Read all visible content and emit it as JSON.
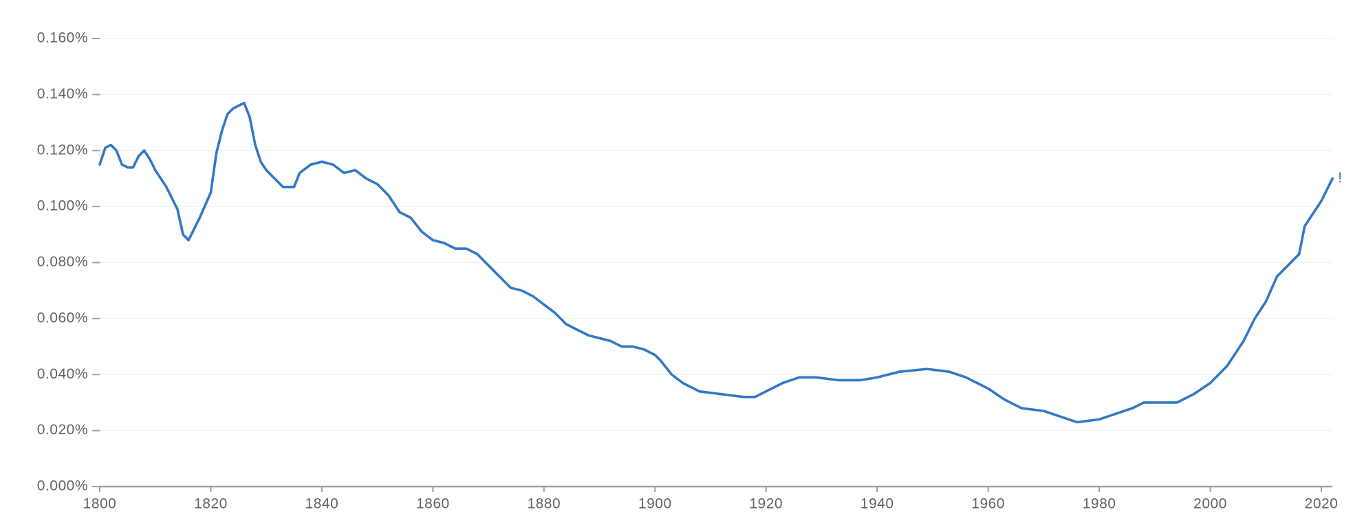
{
  "chart_data": {
    "type": "line",
    "x": [
      1800,
      1801,
      1802,
      1803,
      1804,
      1805,
      1806,
      1807,
      1808,
      1809,
      1810,
      1812,
      1814,
      1815,
      1816,
      1818,
      1820,
      1821,
      1822,
      1823,
      1824,
      1825,
      1826,
      1827,
      1828,
      1829,
      1830,
      1832,
      1833,
      1835,
      1836,
      1838,
      1840,
      1842,
      1844,
      1846,
      1848,
      1850,
      1852,
      1854,
      1856,
      1858,
      1860,
      1862,
      1864,
      1866,
      1868,
      1870,
      1872,
      1874,
      1876,
      1878,
      1880,
      1882,
      1884,
      1886,
      1888,
      1890,
      1892,
      1894,
      1896,
      1898,
      1900,
      1901,
      1903,
      1905,
      1908,
      1912,
      1916,
      1918,
      1920,
      1923,
      1926,
      1929,
      1933,
      1937,
      1940,
      1944,
      1949,
      1953,
      1956,
      1960,
      1963,
      1966,
      1970,
      1973,
      1976,
      1980,
      1983,
      1986,
      1988,
      1991,
      1994,
      1997,
      2000,
      2003,
      2006,
      2008,
      2010,
      2012,
      2014,
      2016,
      2017,
      2018,
      2020,
      2022
    ],
    "series": [
      {
        "color": "#3178c6",
        "values": [
          0.115,
          0.121,
          0.122,
          0.12,
          0.115,
          0.114,
          0.114,
          0.118,
          0.12,
          0.117,
          0.113,
          0.107,
          0.099,
          0.09,
          0.088,
          0.096,
          0.105,
          0.119,
          0.127,
          0.133,
          0.135,
          0.136,
          0.137,
          0.132,
          0.122,
          0.116,
          0.113,
          0.109,
          0.107,
          0.107,
          0.112,
          0.115,
          0.116,
          0.115,
          0.112,
          0.113,
          0.11,
          0.108,
          0.104,
          0.098,
          0.096,
          0.091,
          0.088,
          0.087,
          0.085,
          0.085,
          0.083,
          0.079,
          0.075,
          0.071,
          0.07,
          0.068,
          0.065,
          0.062,
          0.058,
          0.056,
          0.054,
          0.053,
          0.052,
          0.05,
          0.05,
          0.049,
          0.047,
          0.045,
          0.04,
          0.037,
          0.034,
          0.033,
          0.032,
          0.032,
          0.034,
          0.037,
          0.039,
          0.039,
          0.038,
          0.038,
          0.039,
          0.041,
          0.042,
          0.041,
          0.039,
          0.035,
          0.031,
          0.028,
          0.027,
          0.025,
          0.023,
          0.024,
          0.026,
          0.028,
          0.03,
          0.03,
          0.03,
          0.033,
          0.037,
          0.043,
          0.052,
          0.06,
          0.066,
          0.075,
          0.079,
          0.083,
          0.093,
          0.096,
          0.102,
          0.11
        ]
      }
    ],
    "end_marker": "!",
    "xlim": [
      1800,
      2022
    ],
    "xticks": [
      1800,
      1820,
      1840,
      1860,
      1880,
      1900,
      1920,
      1940,
      1960,
      1980,
      2000,
      2020
    ],
    "ylim": [
      0,
      0.16
    ],
    "yticks": [
      {
        "value": 0,
        "label": "0.000%"
      },
      {
        "value": 0.02,
        "label": "0.020%"
      },
      {
        "value": 0.04,
        "label": "0.040%"
      },
      {
        "value": 0.06,
        "label": "0.060%"
      },
      {
        "value": 0.08,
        "label": "0.080%"
      },
      {
        "value": 0.1,
        "label": "0.100%"
      },
      {
        "value": 0.12,
        "label": "0.120%"
      },
      {
        "value": 0.14,
        "label": "0.140%"
      },
      {
        "value": 0.16,
        "label": "0.160%"
      }
    ],
    "grid": true
  }
}
